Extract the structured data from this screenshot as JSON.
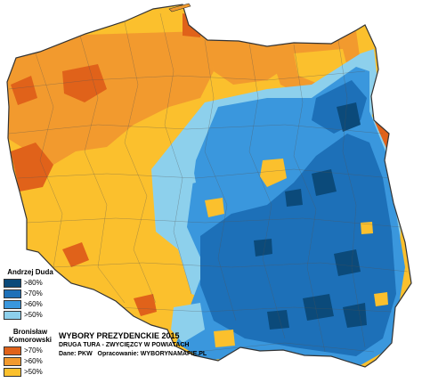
{
  "legend": {
    "candidate1": {
      "name": "Andrzej Duda",
      "items": [
        {
          "label": ">80%",
          "color": "#0b4a7a"
        },
        {
          "label": ">70%",
          "color": "#1d70b8"
        },
        {
          "label": ">60%",
          "color": "#3a97dd"
        },
        {
          "label": ">50%",
          "color": "#8dd0ec"
        }
      ]
    },
    "candidate2": {
      "name": "Bronisław Komorowski",
      "items": [
        {
          "label": ">70%",
          "color": "#e0621a"
        },
        {
          "label": ">60%",
          "color": "#f29a2e"
        },
        {
          "label": ">50%",
          "color": "#fbc02d"
        }
      ]
    }
  },
  "caption": {
    "title": "WYBORY PREZYDENCKIE 2015",
    "subtitle": "DRUGA TURA - ZWYCIĘZCY W POWIATACH",
    "source": "Dane: PKW   Opracowanie: WYBORYNAMAPIE.PL"
  },
  "map": {
    "sea_color": "#ffffff",
    "border_color": "#444444"
  }
}
